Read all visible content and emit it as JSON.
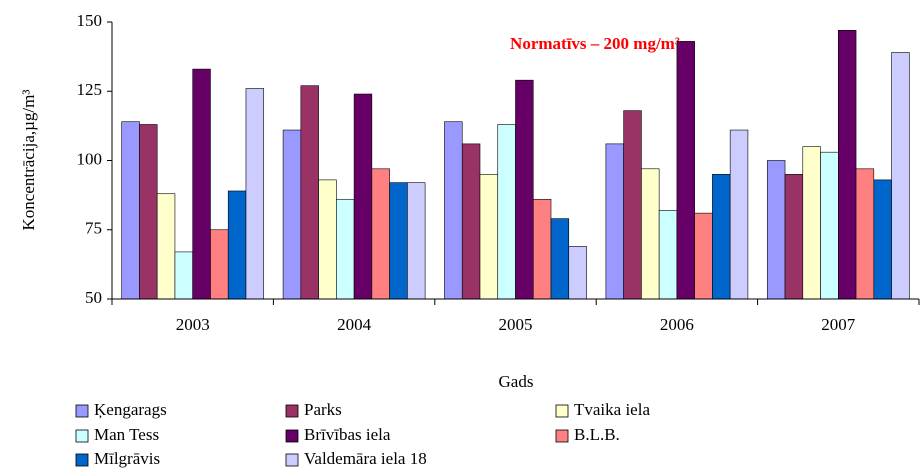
{
  "chart_data": {
    "type": "bar",
    "annotation": "Normatīvs – 200 mg/m³",
    "x_label": "Gads",
    "y_label": "Koncentrācija,µg/m³",
    "categories": [
      "2003",
      "2004",
      "2005",
      "2006",
      "2007"
    ],
    "series": [
      {
        "name": "Ķengarags",
        "color": "#9999ff",
        "values": [
          114,
          111,
          114,
          106,
          100
        ]
      },
      {
        "name": "Parks",
        "color": "#993366",
        "values": [
          113,
          127,
          106,
          118,
          95
        ]
      },
      {
        "name": "Tvaika iela",
        "color": "#ffffcc",
        "values": [
          88,
          93,
          95,
          97,
          105
        ]
      },
      {
        "name": "Man Tess",
        "color": "#ccffff",
        "values": [
          67,
          86,
          113,
          82,
          103
        ]
      },
      {
        "name": "Brīvības iela",
        "color": "#660066",
        "values": [
          133,
          124,
          129,
          143,
          147
        ]
      },
      {
        "name": "B.L.B.",
        "color": "#ff8080",
        "values": [
          75,
          97,
          86,
          81,
          97
        ]
      },
      {
        "name": "Mīlgrāvis",
        "color": "#0066cc",
        "values": [
          89,
          92,
          79,
          95,
          93
        ]
      },
      {
        "name": "Valdemāra iela 18",
        "color": "#ccccff",
        "values": [
          126,
          92,
          69,
          111,
          139
        ]
      }
    ],
    "ylim": [
      50,
      150
    ],
    "yticks": [
      50,
      75,
      100,
      125,
      150
    ],
    "grid": false
  }
}
